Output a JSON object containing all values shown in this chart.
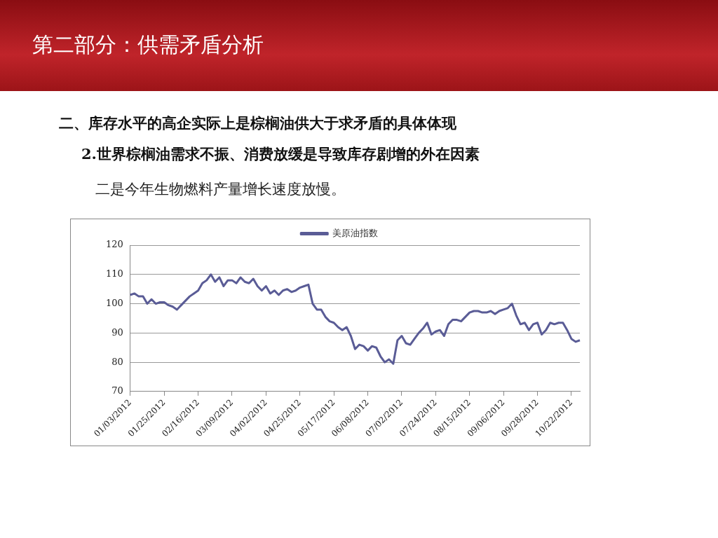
{
  "chart_data": {
    "type": "line",
    "title": "第二部分：供需矛盾分析",
    "subtitle": "二、库存水平的高企实际上是棕榈油供大于求矛盾的具体体现",
    "annotations": [
      "2.世界棕榈油需求不振、消费放缓是导致库存剧增的外在因素",
      "二是今年生物燃料产量增长速度放慢。"
    ],
    "categories": [
      "01/03/2012",
      null,
      null,
      null,
      null,
      null,
      null,
      null,
      "01/25/2012",
      null,
      null,
      null,
      null,
      null,
      null,
      null,
      "02/16/2012",
      null,
      null,
      null,
      null,
      null,
      null,
      null,
      "03/09/2012",
      null,
      null,
      null,
      null,
      null,
      null,
      null,
      "04/02/2012",
      null,
      null,
      null,
      null,
      null,
      null,
      null,
      "04/25/2012",
      null,
      null,
      null,
      null,
      null,
      null,
      null,
      "05/17/2012",
      null,
      null,
      null,
      null,
      null,
      null,
      null,
      "06/08/2012",
      null,
      null,
      null,
      null,
      null,
      null,
      null,
      "07/02/2012",
      null,
      null,
      null,
      null,
      null,
      null,
      null,
      "07/24/2012",
      null,
      null,
      null,
      null,
      null,
      null,
      null,
      "08/15/2012",
      null,
      null,
      null,
      null,
      null,
      null,
      null,
      "09/06/2012",
      null,
      null,
      null,
      null,
      null,
      null,
      null,
      "09/28/2012",
      null,
      null,
      null,
      null,
      null,
      null,
      null,
      "10/22/2012",
      null,
      null
    ],
    "series": [
      {
        "name": "美原油指数",
        "color": "#5a5c96",
        "values": [
          103,
          103.5,
          102.5,
          102.5,
          100,
          101.5,
          100,
          100.5,
          100.5,
          99.5,
          99,
          98,
          99.5,
          101,
          102.5,
          103.5,
          104.5,
          107,
          108,
          110,
          107.5,
          109,
          106,
          108,
          108,
          107,
          109,
          107.5,
          107,
          108.5,
          106,
          104.5,
          106,
          103.5,
          104.5,
          103,
          104.5,
          105,
          104,
          104.5,
          105.5,
          106,
          106.5,
          100,
          98,
          98,
          95.5,
          94,
          93.5,
          92,
          91,
          92,
          89,
          84.5,
          86,
          85.5,
          84,
          85.5,
          85,
          82,
          80,
          81,
          79.5,
          87.5,
          89,
          86.5,
          86,
          88,
          90,
          91.5,
          93.5,
          89.5,
          90.5,
          91,
          89,
          93,
          94.5,
          94.5,
          94,
          95.5,
          97,
          97.5,
          97.5,
          97,
          97,
          97.5,
          96.5,
          97.5,
          98,
          98.5,
          100,
          96,
          93,
          93.5,
          91,
          93,
          93.5,
          89.5,
          91,
          93.5,
          93,
          93.5,
          93.5,
          91,
          88,
          87,
          87.5
        ]
      }
    ],
    "ylim": [
      70,
      120
    ],
    "yticks": [
      70,
      80,
      90,
      100,
      110,
      120
    ],
    "grid": "y",
    "legend": "top",
    "marker": "none",
    "line_style": "solid"
  }
}
